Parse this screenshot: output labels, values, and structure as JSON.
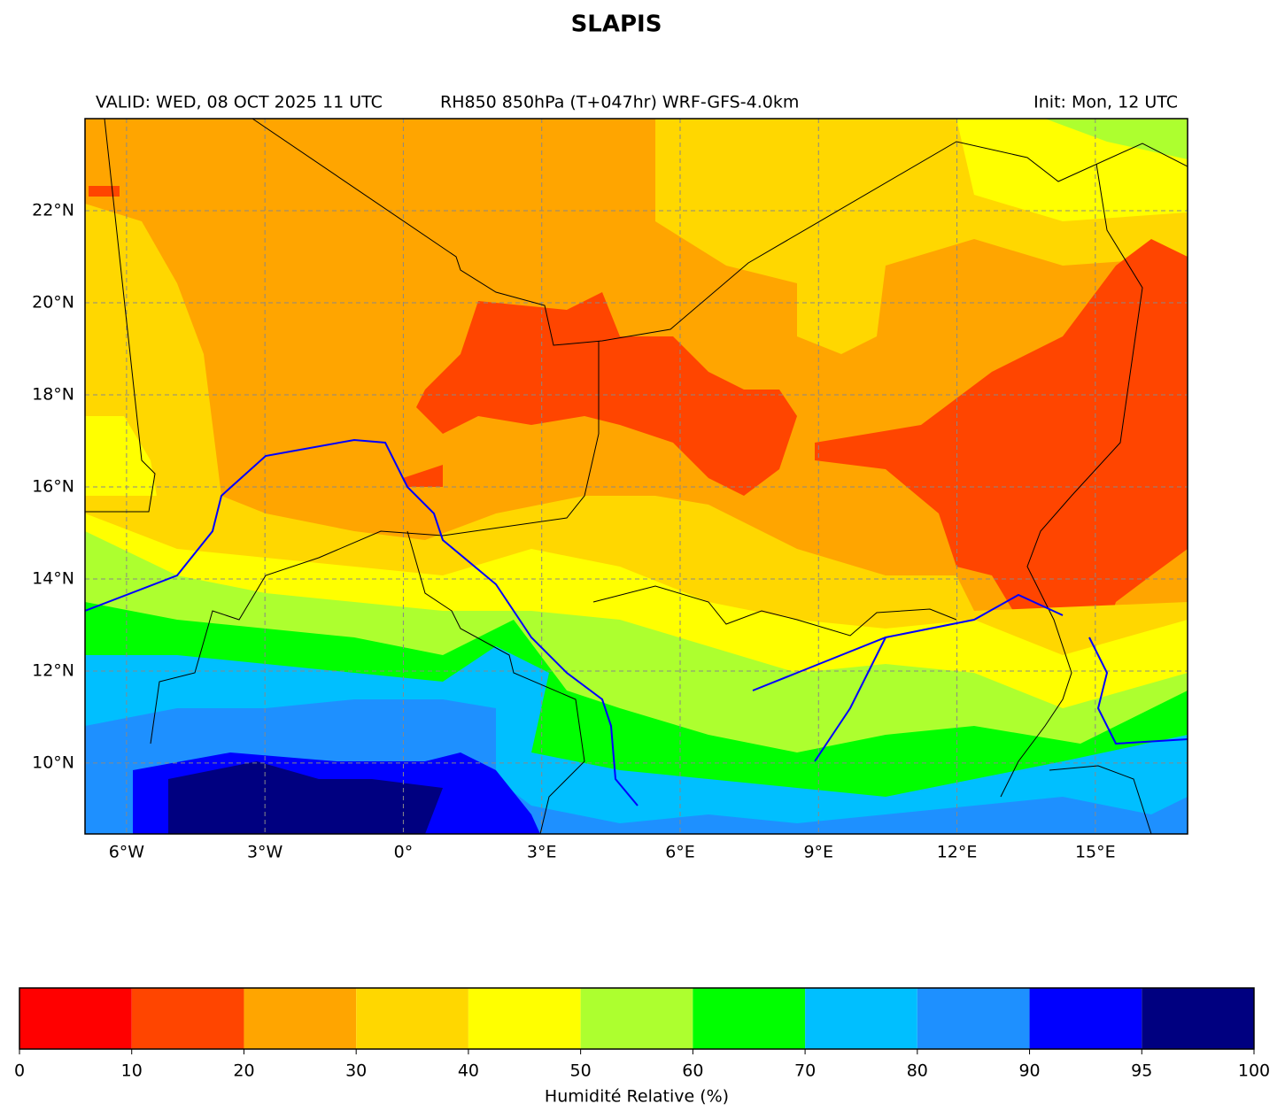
{
  "title": "SLAPIS",
  "header": {
    "valid": "VALID: WED, 08 OCT 2025 11 UTC",
    "product": "RH850 850hPa (T+047hr) WRF-GFS-4.0km",
    "init": "Init: Mon, 12 UTC"
  },
  "map": {
    "xlim": [
      -6.9,
      17
    ],
    "ylim": [
      8.46,
      24
    ],
    "grid": true,
    "xticks": [
      {
        "value": -6,
        "label": "6°W"
      },
      {
        "value": -3,
        "label": "3°W"
      },
      {
        "value": 0,
        "label": "0°"
      },
      {
        "value": 3,
        "label": "3°E"
      },
      {
        "value": 6,
        "label": "6°E"
      },
      {
        "value": 9,
        "label": "9°E"
      },
      {
        "value": 12,
        "label": "12°E"
      },
      {
        "value": 15,
        "label": "15°E"
      }
    ],
    "yticks": [
      {
        "value": 10,
        "label": "10°N"
      },
      {
        "value": 12,
        "label": "12°N"
      },
      {
        "value": 14,
        "label": "14°N"
      },
      {
        "value": 16,
        "label": "16°N"
      },
      {
        "value": 18,
        "label": "18°N"
      },
      {
        "value": 20,
        "label": "20°N"
      },
      {
        "value": 22,
        "label": "22°N"
      }
    ]
  },
  "colorbar": {
    "label": "Humidité Relative (%)",
    "bounds": [
      0,
      10,
      20,
      30,
      40,
      50,
      60,
      70,
      80,
      90,
      95,
      100
    ],
    "colors": [
      "#ff0000",
      "#ff4500",
      "#ffa500",
      "#ffd700",
      "#ffff00",
      "#adff2f",
      "#00ff00",
      "#00bfff",
      "#1e90ff",
      "#0000ff",
      "#000080"
    ]
  }
}
